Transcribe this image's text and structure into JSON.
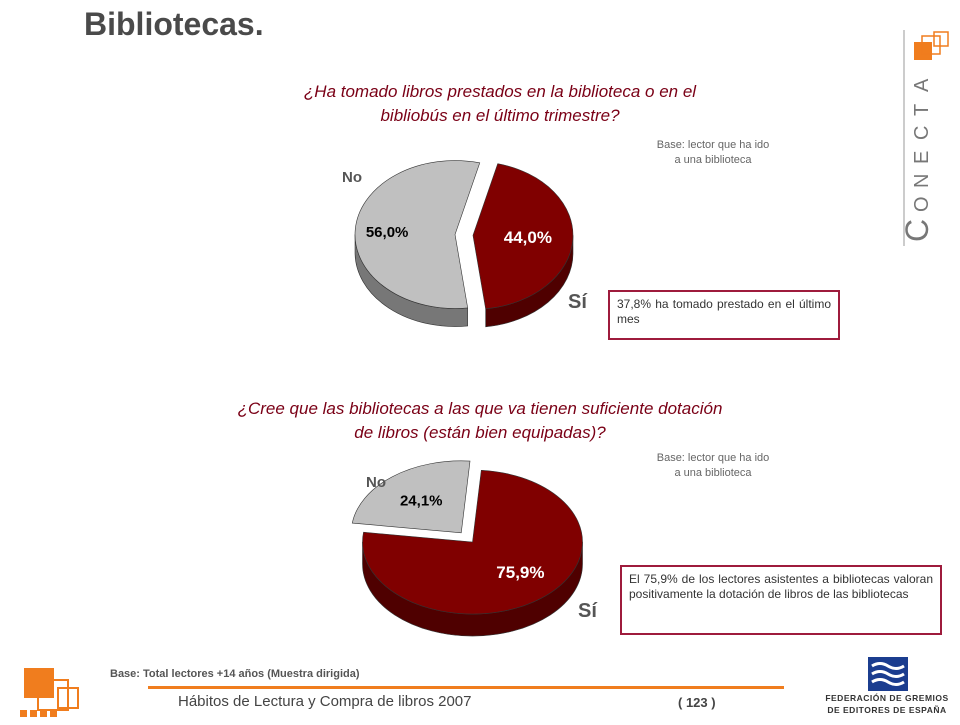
{
  "page": {
    "title": "Bibliotecas.",
    "footer_base": "Base: Total lectores +14 años (Muestra dirigida)",
    "footer_title": "Hábitos de Lectura y Compra de libros 2007",
    "page_number": "( 123 )"
  },
  "brand": {
    "conecta_letters": [
      "C",
      "O",
      "N",
      "E",
      "C",
      "T",
      "A"
    ],
    "publisher_line1": "FEDERACIÓN DE GREMIOS",
    "publisher_line2": "DE EDITORES DE ESPAÑA",
    "accent_color": "#f07d1e",
    "maroon_color": "#7a0016",
    "publisher_blue": "#1b3d8f"
  },
  "chart_data": [
    {
      "type": "pie",
      "title": "¿Ha tomado libros prestados en la biblioteca o en el bibliobús en el último trimestre?",
      "title_lines": [
        "¿Ha tomado libros prestados en la biblioteca o en el",
        "bibliobús en el último trimestre?"
      ],
      "base_note_lines": [
        "Base: lector que ha ido",
        "a una biblioteca"
      ],
      "slices": [
        {
          "label": "Sí",
          "value": 44.0,
          "value_label": "44,0%",
          "color": "#800000"
        },
        {
          "label": "No",
          "value": 56.0,
          "value_label": "56,0%",
          "color": "#c0c0c0"
        }
      ],
      "callout": "37,8% ha tomado prestado en el último mes"
    },
    {
      "type": "pie",
      "title": "¿Cree que las bibliotecas a las que va tienen suficiente dotación de libros (están bien equipadas)?",
      "title_lines": [
        "¿Cree que las bibliotecas a las que va tienen suficiente dotación",
        "de libros (están bien equipadas)?"
      ],
      "base_note_lines": [
        "Base: lector que ha ido",
        "a una biblioteca"
      ],
      "slices": [
        {
          "label": "Sí",
          "value": 75.9,
          "value_label": "75,9%",
          "color": "#800000"
        },
        {
          "label": "No",
          "value": 24.1,
          "value_label": "24,1%",
          "color": "#c0c0c0"
        }
      ],
      "callout": "El 75,9% de los lectores asistentes a bibliotecas valoran positivamente la dotación de libros de las bibliotecas"
    }
  ]
}
